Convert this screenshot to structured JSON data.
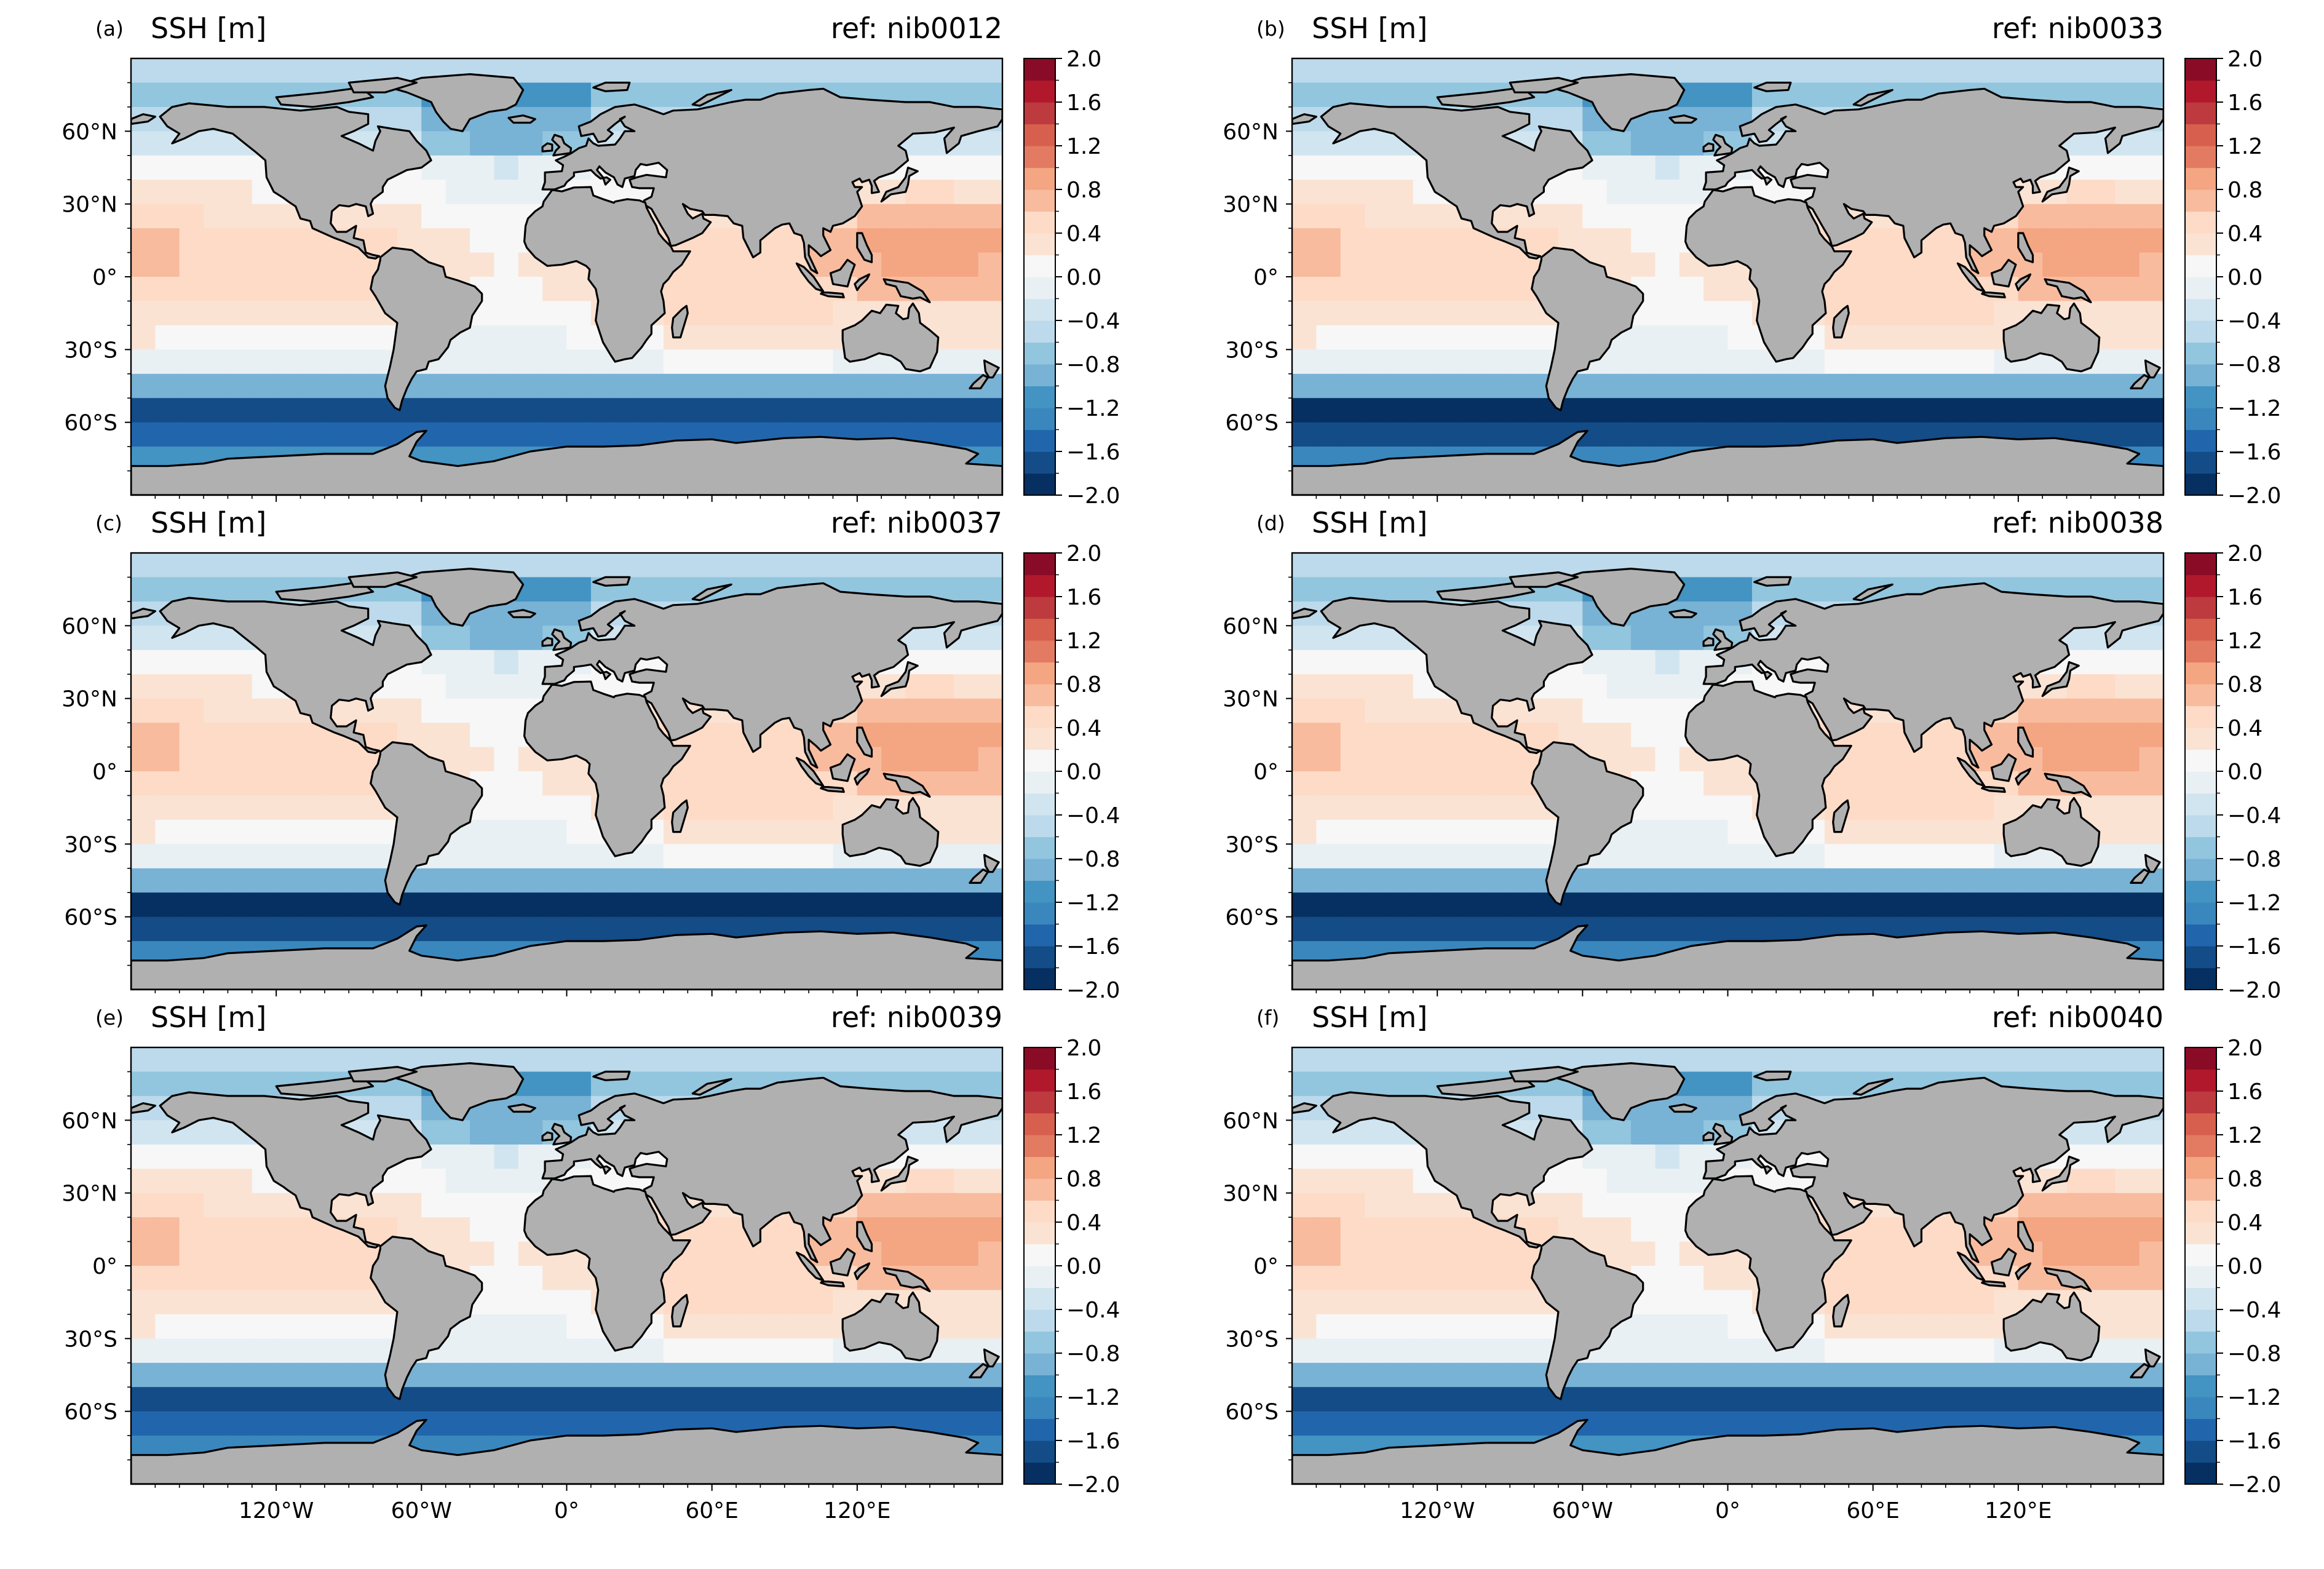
{
  "figure": {
    "panels": [
      {
        "letter": "(a)",
        "title_left": "SSH [m]",
        "title_right": "ref: nib0012"
      },
      {
        "letter": "(b)",
        "title_left": "SSH [m]",
        "title_right": "ref: nib0033"
      },
      {
        "letter": "(c)",
        "title_left": "SSH [m]",
        "title_right": "ref: nib0037"
      },
      {
        "letter": "(d)",
        "title_left": "SSH [m]",
        "title_right": "ref: nib0038"
      },
      {
        "letter": "(e)",
        "title_left": "SSH [m]",
        "title_right": "ref: nib0039"
      },
      {
        "letter": "(f)",
        "title_left": "SSH [m]",
        "title_right": "ref: nib0040"
      }
    ],
    "lat_tick_labels": [
      "60°N",
      "30°N",
      "0°",
      "30°S",
      "60°S"
    ],
    "lon_tick_labels": [
      "120°W",
      "60°W",
      "0°",
      "60°E",
      "120°E"
    ],
    "colorbar_tick_labels": [
      "2.0",
      "1.6",
      "1.2",
      "0.8",
      "0.4",
      "0.0",
      "−0.4",
      "−0.8",
      "−1.2",
      "−1.6",
      "−2.0"
    ]
  },
  "chart_data": {
    "type": "heatmap",
    "variable": "SSH [m]",
    "projection": "PlateCarree",
    "lon_range": [
      -180,
      180
    ],
    "lat_range": [
      -90,
      90
    ],
    "lat_ticks": [
      60,
      30,
      0,
      -30,
      -60
    ],
    "lon_ticks": [
      -120,
      -60,
      0,
      60,
      120
    ],
    "colorbar": {
      "cmap": "RdBu_r",
      "min": -2.0,
      "max": 2.0,
      "levels": 20,
      "ticks": [
        2.0,
        1.6,
        1.2,
        0.8,
        0.4,
        0.0,
        -0.4,
        -0.8,
        -1.2,
        -1.6,
        -2.0
      ]
    },
    "land_color": "#b0b0b0",
    "panels": [
      {
        "label": "(a)",
        "ref": "nib0012",
        "southern_ocean_min": -1.6,
        "west_pacific_max": 0.9
      },
      {
        "label": "(b)",
        "ref": "nib0033",
        "southern_ocean_min": -1.8,
        "west_pacific_max": 0.9
      },
      {
        "label": "(c)",
        "ref": "nib0037",
        "southern_ocean_min": -1.8,
        "west_pacific_max": 0.9
      },
      {
        "label": "(d)",
        "ref": "nib0038",
        "southern_ocean_min": -1.8,
        "west_pacific_max": 0.9
      },
      {
        "label": "(e)",
        "ref": "nib0039",
        "southern_ocean_min": -1.7,
        "west_pacific_max": 0.9
      },
      {
        "label": "(f)",
        "ref": "nib0040",
        "southern_ocean_min": -1.6,
        "west_pacific_max": 0.9
      }
    ]
  }
}
